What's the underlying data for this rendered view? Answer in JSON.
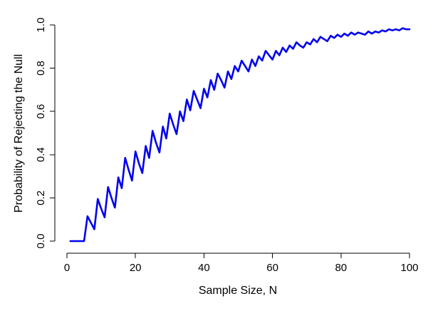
{
  "chart_data": {
    "type": "line",
    "title": "",
    "xlabel": "Sample Size, N",
    "ylabel": "Probability of Rejecting the Null",
    "xlim": [
      0,
      100
    ],
    "ylim": [
      0,
      1
    ],
    "xticks": [
      0,
      20,
      40,
      60,
      80,
      100
    ],
    "yticks": [
      0.0,
      0.2,
      0.4,
      0.6,
      0.8,
      1.0
    ],
    "xtick_labels": [
      "0",
      "20",
      "40",
      "60",
      "80",
      "100"
    ],
    "ytick_labels": [
      "0.0",
      "0.2",
      "0.4",
      "0.6",
      "0.8",
      "1.0"
    ],
    "grid": false,
    "line_color": "#0000ee",
    "series": [
      {
        "x": [
          1,
          2,
          3,
          4,
          5,
          6,
          7,
          8,
          9,
          10,
          11,
          12,
          13,
          14,
          15,
          16,
          17,
          18,
          19,
          20,
          21,
          22,
          23,
          24,
          25,
          26,
          27,
          28,
          29,
          30,
          31,
          32,
          33,
          34,
          35,
          36,
          37,
          38,
          39,
          40,
          41,
          42,
          43,
          44,
          45,
          46,
          47,
          48,
          49,
          50,
          51,
          52,
          53,
          54,
          55,
          56,
          57,
          58,
          59,
          60,
          61,
          62,
          63,
          64,
          65,
          66,
          67,
          68,
          69,
          70,
          71,
          72,
          73,
          74,
          75,
          76,
          77,
          78,
          79,
          80,
          81,
          82,
          83,
          84,
          85,
          86,
          87,
          88,
          89,
          90,
          91,
          92,
          93,
          94,
          95,
          96,
          97,
          98,
          99,
          100
        ],
        "y": [
          0,
          0,
          0,
          0,
          0,
          0.115,
          0.085,
          0.055,
          0.195,
          0.15,
          0.11,
          0.25,
          0.2,
          0.155,
          0.295,
          0.245,
          0.385,
          0.33,
          0.28,
          0.415,
          0.36,
          0.315,
          0.44,
          0.385,
          0.51,
          0.455,
          0.41,
          0.53,
          0.475,
          0.59,
          0.54,
          0.495,
          0.6,
          0.555,
          0.655,
          0.605,
          0.695,
          0.655,
          0.615,
          0.705,
          0.665,
          0.745,
          0.7,
          0.775,
          0.745,
          0.71,
          0.785,
          0.75,
          0.81,
          0.785,
          0.835,
          0.81,
          0.785,
          0.84,
          0.81,
          0.855,
          0.835,
          0.88,
          0.86,
          0.84,
          0.88,
          0.86,
          0.895,
          0.875,
          0.905,
          0.89,
          0.92,
          0.905,
          0.895,
          0.92,
          0.91,
          0.935,
          0.92,
          0.945,
          0.935,
          0.925,
          0.95,
          0.94,
          0.955,
          0.945,
          0.96,
          0.95,
          0.965,
          0.955,
          0.965,
          0.96,
          0.955,
          0.97,
          0.96,
          0.97,
          0.965,
          0.975,
          0.97,
          0.98,
          0.975,
          0.98,
          0.975,
          0.985,
          0.98,
          0.98
        ]
      }
    ]
  }
}
